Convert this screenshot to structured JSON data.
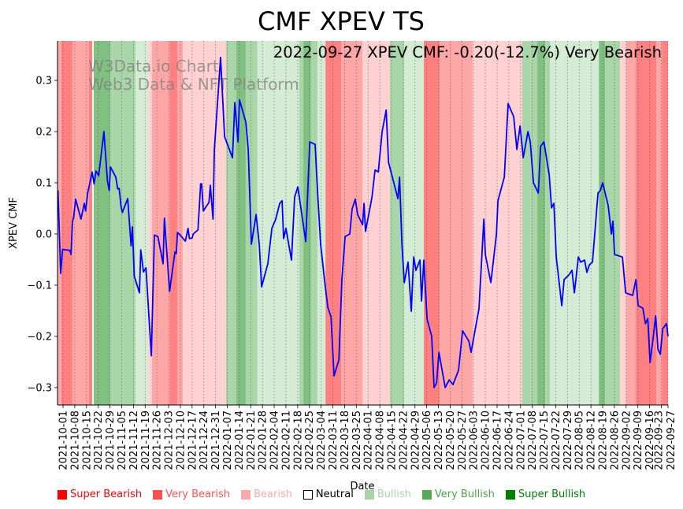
{
  "chart_data": {
    "type": "line",
    "title": "CMF XPEV TS",
    "annotation": "2022-09-27 XPEV CMF: -0.20(-12.7%) Very Bearish",
    "watermark": [
      "W3Data.io Chart",
      "Web3 Data & NFT Platform"
    ],
    "xlabel": "Date",
    "ylabel": "XPEV CMF",
    "x_origin_date": "2021-10-01",
    "x_unit": "days since 2021-10-01",
    "xlim": [
      -3.3,
      361
    ],
    "ylim": [
      -0.334,
      0.377
    ],
    "yticks": [
      0.3,
      0.2,
      0.1,
      0.0,
      -0.1,
      -0.2,
      -0.3
    ],
    "ytick_labels": [
      "0.3",
      "0.2",
      "0.1",
      "0.0",
      "−0.1",
      "−0.2",
      "−0.3"
    ],
    "xtick_days": [
      0,
      7,
      14,
      21,
      28,
      35,
      42,
      49,
      56,
      63,
      70,
      77,
      84,
      91,
      98,
      105,
      112,
      119,
      126,
      133,
      140,
      147,
      154,
      161,
      168,
      175,
      182,
      189,
      196,
      203,
      210,
      217,
      224,
      231,
      238,
      245,
      252,
      259,
      266,
      273,
      280,
      287,
      294,
      301,
      308,
      315,
      322,
      329,
      336,
      343,
      350,
      357,
      361
    ],
    "xtick_labels": [
      "2021-10-01",
      "2021-10-08",
      "2021-10-15",
      "2021-10-22",
      "2021-10-29",
      "2021-11-05",
      "2021-11-12",
      "2021-11-19",
      "2021-11-26",
      "2021-12-03",
      "2021-12-10",
      "2021-12-17",
      "2021-12-24",
      "2021-12-31",
      "2022-01-07",
      "2022-01-14",
      "2022-01-21",
      "2022-01-28",
      "2022-02-04",
      "2022-02-11",
      "2022-02-18",
      "2022-02-25",
      "2022-03-04",
      "2022-03-11",
      "2022-03-18",
      "2022-03-25",
      "2022-04-01",
      "2022-04-08",
      "2022-04-15",
      "2022-04-22",
      "2022-04-29",
      "2022-05-06",
      "2022-05-13",
      "2022-05-20",
      "2022-05-27",
      "2022-06-03",
      "2022-06-10",
      "2022-06-17",
      "2022-06-24",
      "2022-07-01",
      "2022-07-08",
      "2022-07-15",
      "2022-07-22",
      "2022-07-29",
      "2022-08-05",
      "2022-08-12",
      "2022-08-19",
      "2022-08-26",
      "2022-09-02",
      "2022-09-09",
      "2022-09-16",
      "2022-09-23",
      "2022-09-27"
    ],
    "grid": "x dotted",
    "series": [
      {
        "name": "XPEV CMF",
        "color": "#0000ff",
        "days": [
          -3,
          -1.4,
          -0.3,
          4.1,
          4.8,
          5.6,
          6.4,
          7.5,
          10.7,
          12.7,
          13.5,
          14.7,
          17.4,
          18.5,
          19.7,
          21.3,
          24.4,
          26.5,
          27.6,
          28.3,
          31.5,
          32.6,
          33.5,
          34.6,
          35.4,
          38.6,
          40.6,
          41.4,
          42.5,
          45.6,
          46.4,
          48,
          49.5,
          52.7,
          54.5,
          56.6,
          59.7,
          60.5,
          63.6,
          66.8,
          67.6,
          68.3,
          69.9,
          73,
          74.6,
          75.4,
          77,
          77.7,
          80.5,
          82.1,
          82.7,
          83.7,
          87.1,
          87.9,
          89.5,
          90.3,
          94,
          96.4,
          101.1,
          102.5,
          104.4,
          105.3,
          109.1,
          110.5,
          112.4,
          115.2,
          117.1,
          118.5,
          122.2,
          124.6,
          126.9,
          129.3,
          130.7,
          131.6,
          133,
          136.3,
          138.2,
          140.1,
          144.8,
          147.2,
          150.4,
          151.9,
          153.7,
          156.1,
          158,
          159.9,
          161.7,
          164.6,
          166.4,
          168.3,
          171.1,
          172.5,
          174.4,
          175.8,
          178.7,
          179.6,
          180.5,
          184.3,
          186.2,
          188.1,
          190.4,
          192.8,
          194.2,
          199.8,
          200.8,
          202.2,
          203.6,
          205.9,
          207.8,
          209.2,
          210.6,
          213,
          213.9,
          215.3,
          217.2,
          220,
          221.4,
          222.9,
          224.3,
          228,
          230.4,
          232.7,
          236,
          238.4,
          242.1,
          243.5,
          248.2,
          251.1,
          252,
          255.3,
          258.6,
          259.5,
          263.3,
          265.6,
          268.9,
          270.8,
          272.7,
          274.6,
          277.4,
          278.8,
          280.7,
          283.6,
          285,
          286.9,
          290.1,
          291.5,
          292.9,
          294.3,
          297.6,
          299,
          301.8,
          303.7,
          305.1,
          307.5,
          308.9,
          311.2,
          312.6,
          314.1,
          315.9,
          319.2,
          320.6,
          322,
          325.3,
          327.2,
          328.1,
          329.1,
          333.8,
          335.7,
          339.9,
          341.8,
          343.2,
          346,
          347.5,
          348.9,
          350.3,
          352.2,
          353.6,
          355,
          356.4,
          357.8,
          360.1,
          361
        ],
        "values": [
          0.085,
          -0.077,
          -0.03,
          -0.032,
          -0.04,
          0.023,
          0.034,
          0.068,
          0.029,
          0.06,
          0.045,
          0.08,
          0.121,
          0.098,
          0.123,
          0.114,
          0.2,
          0.103,
          0.085,
          0.131,
          0.111,
          0.088,
          0.089,
          0.054,
          0.042,
          0.069,
          -0.023,
          0.014,
          -0.082,
          -0.115,
          -0.031,
          -0.074,
          -0.066,
          -0.238,
          -0.002,
          -0.005,
          -0.058,
          0.031,
          -0.112,
          -0.035,
          -0.038,
          0.003,
          -0.002,
          -0.014,
          0.011,
          -0.009,
          -0.008,
          0,
          0.008,
          0.098,
          0.098,
          0.045,
          0.062,
          0.095,
          0.029,
          0.165,
          0.345,
          0.19,
          0.149,
          0.257,
          0.18,
          0.262,
          0.218,
          0.165,
          -0.02,
          0.038,
          -0.02,
          -0.103,
          -0.058,
          0.011,
          0.029,
          0.06,
          0.065,
          -0.009,
          0.011,
          -0.051,
          0.072,
          0.092,
          -0.015,
          0.18,
          0.175,
          0.08,
          -0.02,
          -0.092,
          -0.143,
          -0.162,
          -0.277,
          -0.246,
          -0.089,
          -0.005,
          0,
          0.049,
          0.068,
          0.038,
          0.018,
          0.06,
          0.005,
          0.071,
          0.125,
          0.121,
          0.2,
          0.242,
          0.14,
          0.069,
          0.111,
          -0.02,
          -0.095,
          -0.055,
          -0.151,
          -0.045,
          -0.071,
          -0.051,
          -0.131,
          -0.051,
          -0.166,
          -0.2,
          -0.3,
          -0.291,
          -0.231,
          -0.3,
          -0.285,
          -0.294,
          -0.266,
          -0.189,
          -0.209,
          -0.231,
          -0.146,
          0.029,
          -0.04,
          -0.095,
          0,
          0.065,
          0.111,
          0.255,
          0.229,
          0.165,
          0.211,
          0.149,
          0.2,
          0.18,
          0.1,
          0.08,
          0.171,
          0.18,
          0.115,
          0.051,
          0.06,
          -0.045,
          -0.14,
          -0.089,
          -0.08,
          -0.071,
          -0.115,
          -0.045,
          -0.055,
          -0.051,
          -0.075,
          -0.06,
          -0.055,
          0.08,
          0.085,
          0.1,
          0.055,
          0,
          0.025,
          -0.04,
          -0.045,
          -0.115,
          -0.12,
          -0.089,
          -0.14,
          -0.145,
          -0.175,
          -0.165,
          -0.251,
          -0.2,
          -0.16,
          -0.225,
          -0.235,
          -0.185,
          -0.175,
          -0.2
        ]
      }
    ],
    "sentiment_bands": [
      [
        -4,
        -1,
        "VB"
      ],
      [
        -1,
        5.6,
        "SB"
      ],
      [
        5.6,
        15.5,
        "VB"
      ],
      [
        15.5,
        17.4,
        "SB"
      ],
      [
        17.4,
        18.3,
        "N"
      ],
      [
        18.3,
        28.2,
        "SBu"
      ],
      [
        28.2,
        43.3,
        "VBu"
      ],
      [
        43.3,
        50.8,
        "Bu"
      ],
      [
        50.8,
        53.1,
        "B"
      ],
      [
        53.1,
        63.5,
        "VB"
      ],
      [
        63.5,
        68.2,
        "SB"
      ],
      [
        68.2,
        71.5,
        "VB"
      ],
      [
        71.5,
        97.3,
        "B"
      ],
      [
        97.3,
        103.4,
        "VBu"
      ],
      [
        103.4,
        109,
        "SBu"
      ],
      [
        109,
        116,
        "VBu"
      ],
      [
        116,
        141,
        "Bu"
      ],
      [
        141,
        143.4,
        "VBu"
      ],
      [
        143.4,
        148,
        "SBu"
      ],
      [
        148,
        151.9,
        "VBu"
      ],
      [
        151.9,
        156.6,
        "Bu"
      ],
      [
        156.6,
        166,
        "SB"
      ],
      [
        166,
        178.7,
        "VB"
      ],
      [
        178.7,
        195,
        "B"
      ],
      [
        195,
        203.6,
        "VBu"
      ],
      [
        203.6,
        215.3,
        "Bu"
      ],
      [
        215.3,
        224.7,
        "SB"
      ],
      [
        224.7,
        244.5,
        "VB"
      ],
      [
        244.5,
        274,
        "B"
      ],
      [
        274,
        283,
        "VBu"
      ],
      [
        283,
        287.7,
        "SBu"
      ],
      [
        287.7,
        290.5,
        "VBu"
      ],
      [
        290.5,
        319.7,
        "Bu"
      ],
      [
        319.7,
        323.5,
        "SBu"
      ],
      [
        323.5,
        332.4,
        "VBu"
      ],
      [
        332.4,
        336,
        "B"
      ],
      [
        336,
        341.8,
        "VB"
      ],
      [
        341.8,
        354,
        "SB"
      ],
      [
        354,
        357.3,
        "VB"
      ],
      [
        357.3,
        362,
        "SB"
      ]
    ],
    "band_colors": {
      "SB": "#ff8080",
      "VB": "#ffa6a6",
      "B": "#ffd1d1",
      "N": "#ffffff",
      "Bu": "#d4ebd4",
      "VBu": "#a9d6a9",
      "SBu": "#80c080"
    },
    "legend": {
      "placement": "bottom",
      "items": [
        {
          "key": "SB",
          "label": "Super Bearish",
          "color": "#ff0000",
          "text_color": "#ff0000"
        },
        {
          "key": "VB",
          "label": "Very Bearish",
          "color": "#ff5050",
          "text_color": "#ff5050"
        },
        {
          "key": "B",
          "label": "Bearish",
          "color": "#ffa8a8",
          "text_color": "#ffa8a8"
        },
        {
          "key": "N",
          "label": "Neutral",
          "color": "#ffffff",
          "text_color": "#000000"
        },
        {
          "key": "Bu",
          "label": "Bullish",
          "color": "#a8d5a8",
          "text_color": "#a8d5a8"
        },
        {
          "key": "VBu",
          "label": "Very Bullish",
          "color": "#55aa55",
          "text_color": "#4ca64c"
        },
        {
          "key": "SBu",
          "label": "Super Bullish",
          "color": "#008000",
          "text_color": "#008000"
        }
      ]
    }
  }
}
